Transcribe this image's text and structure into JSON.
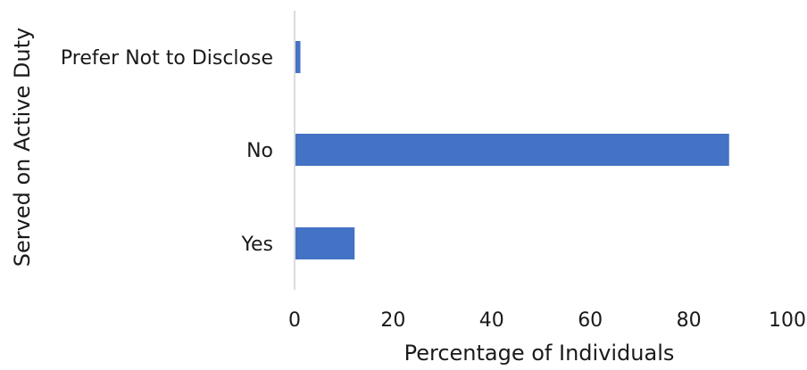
{
  "chart_data": {
    "type": "bar",
    "orientation": "horizontal",
    "categories": [
      "Yes",
      "No",
      "Prefer Not to Disclose"
    ],
    "values": [
      12,
      88,
      1
    ],
    "xlabel": "Percentage of Individuals",
    "ylabel": "Served on Active Duty",
    "xlim": [
      0,
      100
    ],
    "xticks": [
      0,
      20,
      40,
      60,
      80,
      100
    ],
    "grid": false,
    "legend": "none",
    "colors": {
      "bar": "#4472C4",
      "axis": "#d0d0d0"
    }
  }
}
